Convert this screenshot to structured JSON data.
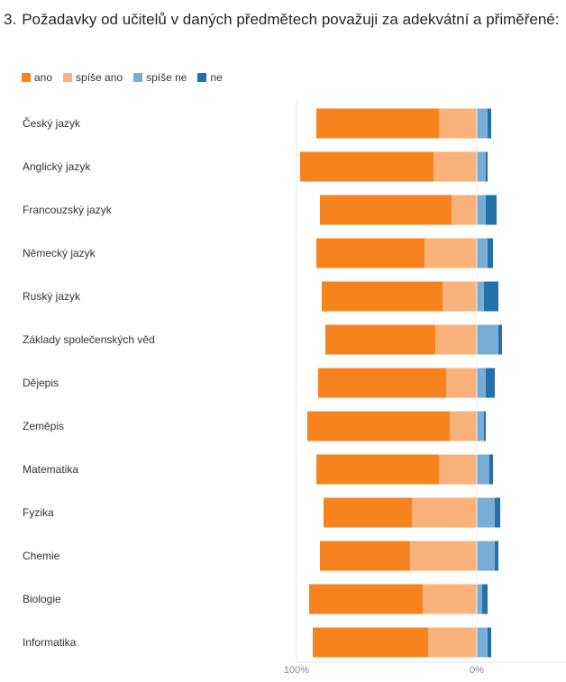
{
  "question": {
    "number": "3.",
    "text": "Požadavky od učitelů v daných předmětech považuji za adekvátní a přiměřené:"
  },
  "legend": [
    {
      "label": "ano",
      "color": "#f7831f"
    },
    {
      "label": "spíše ano",
      "color": "#fbb27a"
    },
    {
      "label": "spíše ne",
      "color": "#78add6"
    },
    {
      "label": "ne",
      "color": "#2471aa"
    }
  ],
  "chart_data": {
    "type": "bar",
    "orientation": "horizontal-diverging",
    "categories": [
      "Český jazyk",
      "Anglický jazyk",
      "Francouzský jazyk",
      "Německý jazyk",
      "Ruský jazyk",
      "Základy společenských věd",
      "Dějepis",
      "Zeměpis",
      "Matematika",
      "Fyzika",
      "Chemie",
      "Biologie",
      "Informatika"
    ],
    "series": [
      {
        "name": "ano",
        "color": "#f7831f",
        "values": [
          68,
          74,
          73,
          60,
          67,
          61,
          71,
          79,
          68,
          49,
          50,
          63,
          64
        ]
      },
      {
        "name": "spíše ano",
        "color": "#fbb27a",
        "values": [
          21,
          24,
          14,
          29,
          19,
          23,
          17,
          15,
          21,
          36,
          37,
          30,
          27
        ]
      },
      {
        "name": "spíše ne",
        "color": "#78add6",
        "values": [
          6,
          5,
          5,
          6,
          4,
          12,
          5,
          4,
          7,
          10,
          10,
          3,
          6
        ]
      },
      {
        "name": "ne",
        "color": "#2471aa",
        "values": [
          2,
          1,
          6,
          3,
          8,
          2,
          5,
          1,
          2,
          3,
          2,
          3,
          2
        ]
      }
    ],
    "x_ticks": [
      "100%",
      "0%"
    ],
    "xlim": [
      -100,
      50
    ],
    "legend_position": "top-left",
    "grid": false
  }
}
